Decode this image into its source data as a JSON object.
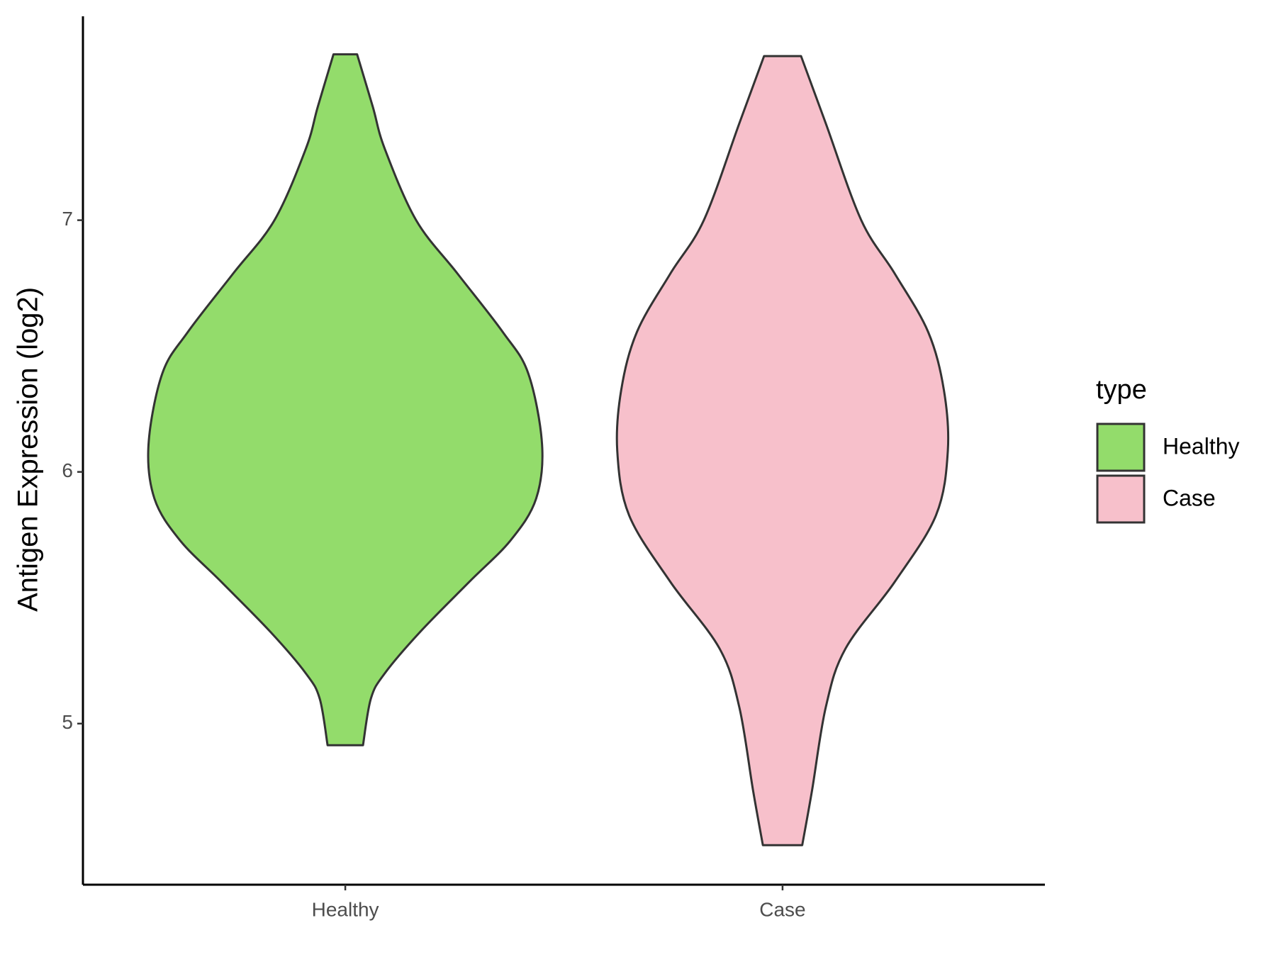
{
  "chart_data": {
    "type": "violin",
    "y_label": "Antigen Expression (log2)",
    "categories": [
      "Healthy",
      "Case"
    ],
    "ylim": [
      4.36,
      7.81
    ],
    "yticks": [
      5,
      6,
      7
    ],
    "legend_title": "type",
    "legend_position": "right",
    "series": [
      {
        "name": "Healthy",
        "color": "#93dc6b",
        "y": [
          7.659,
          7.45,
          7.285,
          7.0,
          6.788,
          6.556,
          6.391,
          6.109,
          5.894,
          5.728,
          5.563,
          5.364,
          5.199,
          5.099,
          4.914
        ],
        "width": [
          0.06,
          0.14,
          0.2,
          0.36,
          0.57,
          0.8,
          0.93,
          1.0,
          0.97,
          0.84,
          0.63,
          0.38,
          0.2,
          0.13,
          0.09
        ]
      },
      {
        "name": "Case",
        "color": "#f7c0cb",
        "y": [
          7.652,
          7.384,
          7.0,
          6.788,
          6.556,
          6.325,
          6.083,
          5.828,
          5.563,
          5.298,
          5.066,
          4.735,
          4.517
        ],
        "width": [
          0.094,
          0.22,
          0.4,
          0.57,
          0.74,
          0.82,
          0.84,
          0.78,
          0.57,
          0.32,
          0.22,
          0.15,
          0.1
        ]
      }
    ]
  }
}
